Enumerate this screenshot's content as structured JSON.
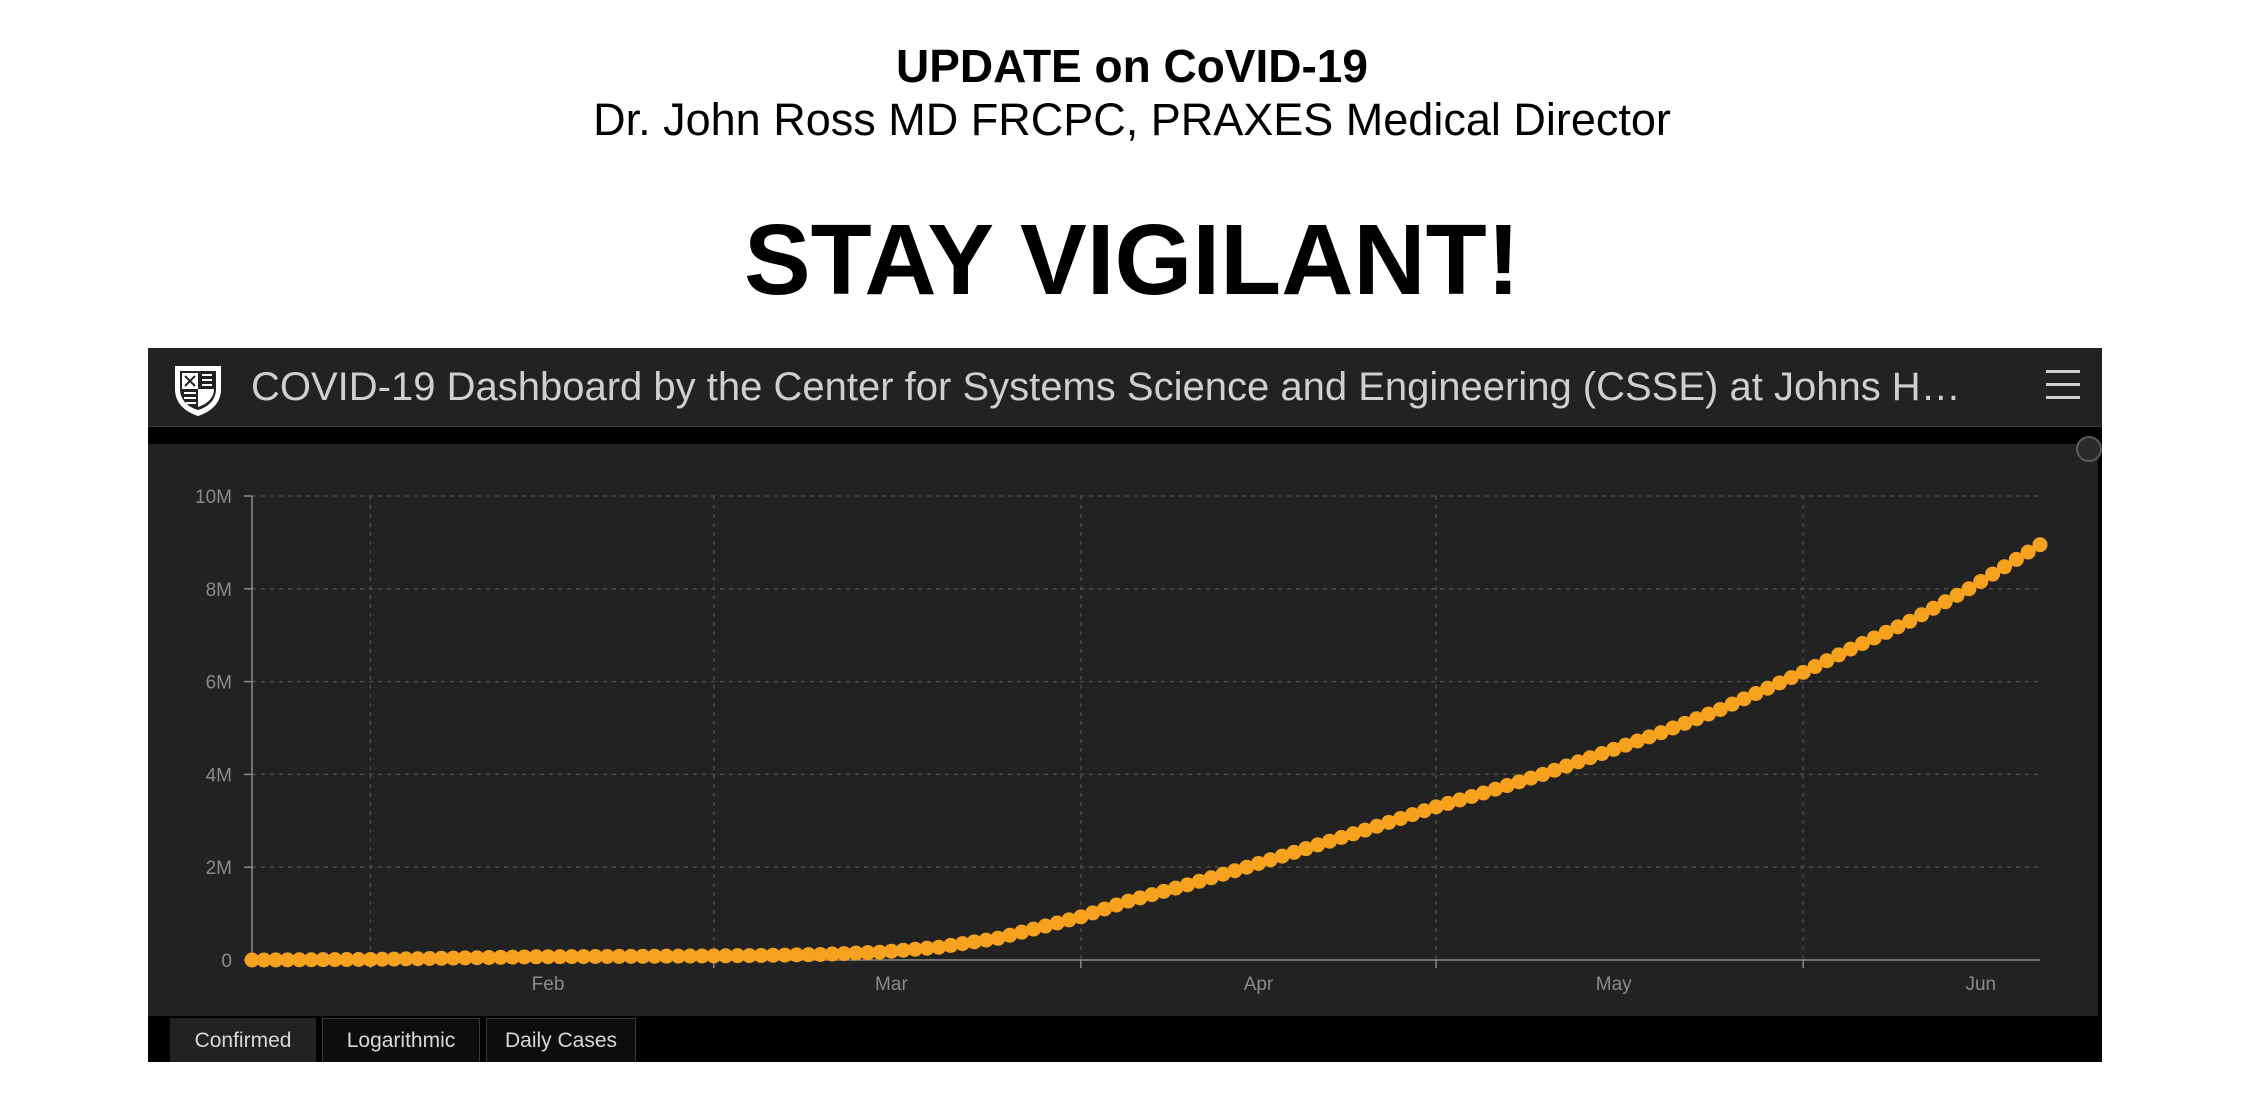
{
  "heading": {
    "title": "UPDATE on CoVID-19",
    "byline": "Dr. John Ross MD FRCPC, PRAXES Medical Director",
    "slogan": "STAY VIGILANT!"
  },
  "dashboard": {
    "title": "COVID-19 Dashboard by the Center for Systems Science and Engineering (CSSE) at Johns H…",
    "logo_icon": "university-shield-icon",
    "menu_icon": "hamburger-menu-icon",
    "expand_icon": "expand-icon",
    "tabs": [
      {
        "label": "Confirmed",
        "active": true
      },
      {
        "label": "Logarithmic",
        "active": false
      },
      {
        "label": "Daily Cases",
        "active": false
      }
    ]
  },
  "colors": {
    "series": "#F6A21E",
    "panel_background": "#222222",
    "frame_background": "#000000",
    "axis": "#8a8a8a",
    "grid": "#4a4a4a",
    "text": "#cfcfcf"
  },
  "chart_data": {
    "type": "scatter",
    "x_start": "2020-01-22",
    "x_end": "2020-06-21",
    "xticks": [
      {
        "label": "Feb",
        "date": "2020-02-01"
      },
      {
        "label": "Mar",
        "date": "2020-03-01"
      },
      {
        "label": "Apr",
        "date": "2020-04-01"
      },
      {
        "label": "May",
        "date": "2020-05-01"
      },
      {
        "label": "Jun",
        "date": "2020-06-01"
      }
    ],
    "ylim": [
      0,
      10000000
    ],
    "yticks": [
      {
        "label": "0",
        "value": 0
      },
      {
        "label": "2M",
        "value": 2000000
      },
      {
        "label": "4M",
        "value": 4000000
      },
      {
        "label": "6M",
        "value": 6000000
      },
      {
        "label": "8M",
        "value": 8000000
      },
      {
        "label": "10M",
        "value": 10000000
      }
    ],
    "grid": true,
    "series": [
      {
        "color": "#F6A21E",
        "points": [
          [
            "2020-01-22",
            0
          ],
          [
            "2020-02-01",
            12000
          ],
          [
            "2020-02-15",
            69000
          ],
          [
            "2020-03-01",
            88000
          ],
          [
            "2020-03-05",
            98000
          ],
          [
            "2020-03-10",
            119000
          ],
          [
            "2020-03-15",
            168000
          ],
          [
            "2020-03-20",
            276000
          ],
          [
            "2020-03-25",
            468000
          ],
          [
            "2020-04-01",
            930000
          ],
          [
            "2020-04-05",
            1270000
          ],
          [
            "2020-04-10",
            1620000
          ],
          [
            "2020-04-15",
            2000000
          ],
          [
            "2020-04-20",
            2400000
          ],
          [
            "2020-04-25",
            2800000
          ],
          [
            "2020-05-01",
            3300000
          ],
          [
            "2020-05-05",
            3600000
          ],
          [
            "2020-05-10",
            4000000
          ],
          [
            "2020-05-15",
            4450000
          ],
          [
            "2020-05-20",
            4900000
          ],
          [
            "2020-05-25",
            5400000
          ],
          [
            "2020-06-01",
            6200000
          ],
          [
            "2020-06-05",
            6700000
          ],
          [
            "2020-06-10",
            7300000
          ],
          [
            "2020-06-15",
            8000000
          ],
          [
            "2020-06-21",
            8950000
          ]
        ]
      }
    ]
  }
}
